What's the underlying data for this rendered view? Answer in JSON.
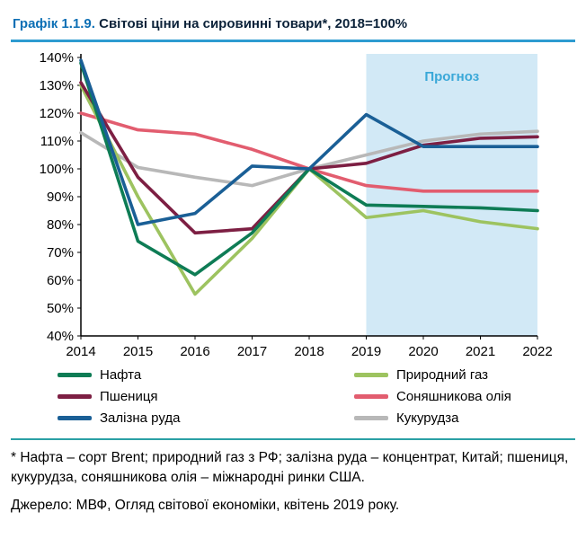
{
  "header": {
    "label": "Графік 1.1.9.",
    "title": "Світові ціни на сировинні товари*, 2018=100%",
    "label_color": "#0c6fb5",
    "title_color": "#0b2239",
    "rule_color": "#2d9bd0"
  },
  "chart_data": {
    "type": "line",
    "title": "Світові ціни на сировинні товари, 2018=100%",
    "xlabel": "",
    "ylabel": "",
    "x": [
      2014,
      2015,
      2016,
      2017,
      2018,
      2019,
      2020,
      2021,
      2022
    ],
    "ylim": [
      40,
      140
    ],
    "y_tick_step": 10,
    "y_tick_suffix": "%",
    "grid": false,
    "legend_position": "bottom",
    "forecast": {
      "label": "Прогноз",
      "start_x": 2019,
      "band_color": "#d2e9f6",
      "label_color": "#3aa8d8"
    },
    "series": [
      {
        "name": "Нафта",
        "color": "#0e7c55",
        "values": [
          138,
          74,
          62,
          77,
          100,
          87,
          86.5,
          86,
          85
        ]
      },
      {
        "name": "Природний газ",
        "color": "#9dc360",
        "values": [
          130,
          90,
          55,
          75,
          100,
          82.5,
          85,
          81,
          78.5
        ]
      },
      {
        "name": "Пшениця",
        "color": "#7d1f43",
        "values": [
          131,
          97,
          77,
          78.5,
          100,
          102,
          108.5,
          111,
          111.5
        ]
      },
      {
        "name": "Соняшникова олія",
        "color": "#e25d6f",
        "values": [
          120,
          114,
          112.5,
          107,
          100,
          94,
          92,
          92,
          92
        ]
      },
      {
        "name": "Залізна руда",
        "color": "#1a5f96",
        "values": [
          139,
          80,
          84,
          101,
          100,
          119.5,
          108,
          108,
          108
        ]
      },
      {
        "name": "Кукурудза",
        "color": "#b8b8b8",
        "values": [
          113,
          100.5,
          97,
          94,
          100,
          105,
          110,
          112.5,
          113.5
        ]
      }
    ],
    "draw_order": [
      5,
      3,
      1,
      2,
      0,
      4
    ]
  },
  "footnote": {
    "rule_color": "#2ba0a5",
    "text": "* Нафта – сорт Brent; природний газ з РФ; залізна руда – концентрат, Китай; пшениця, кукурудза, соняшникова олія – міжнародні ринки США.",
    "source": "Джерело: МВФ, Огляд світової економіки, квітень 2019 року."
  }
}
